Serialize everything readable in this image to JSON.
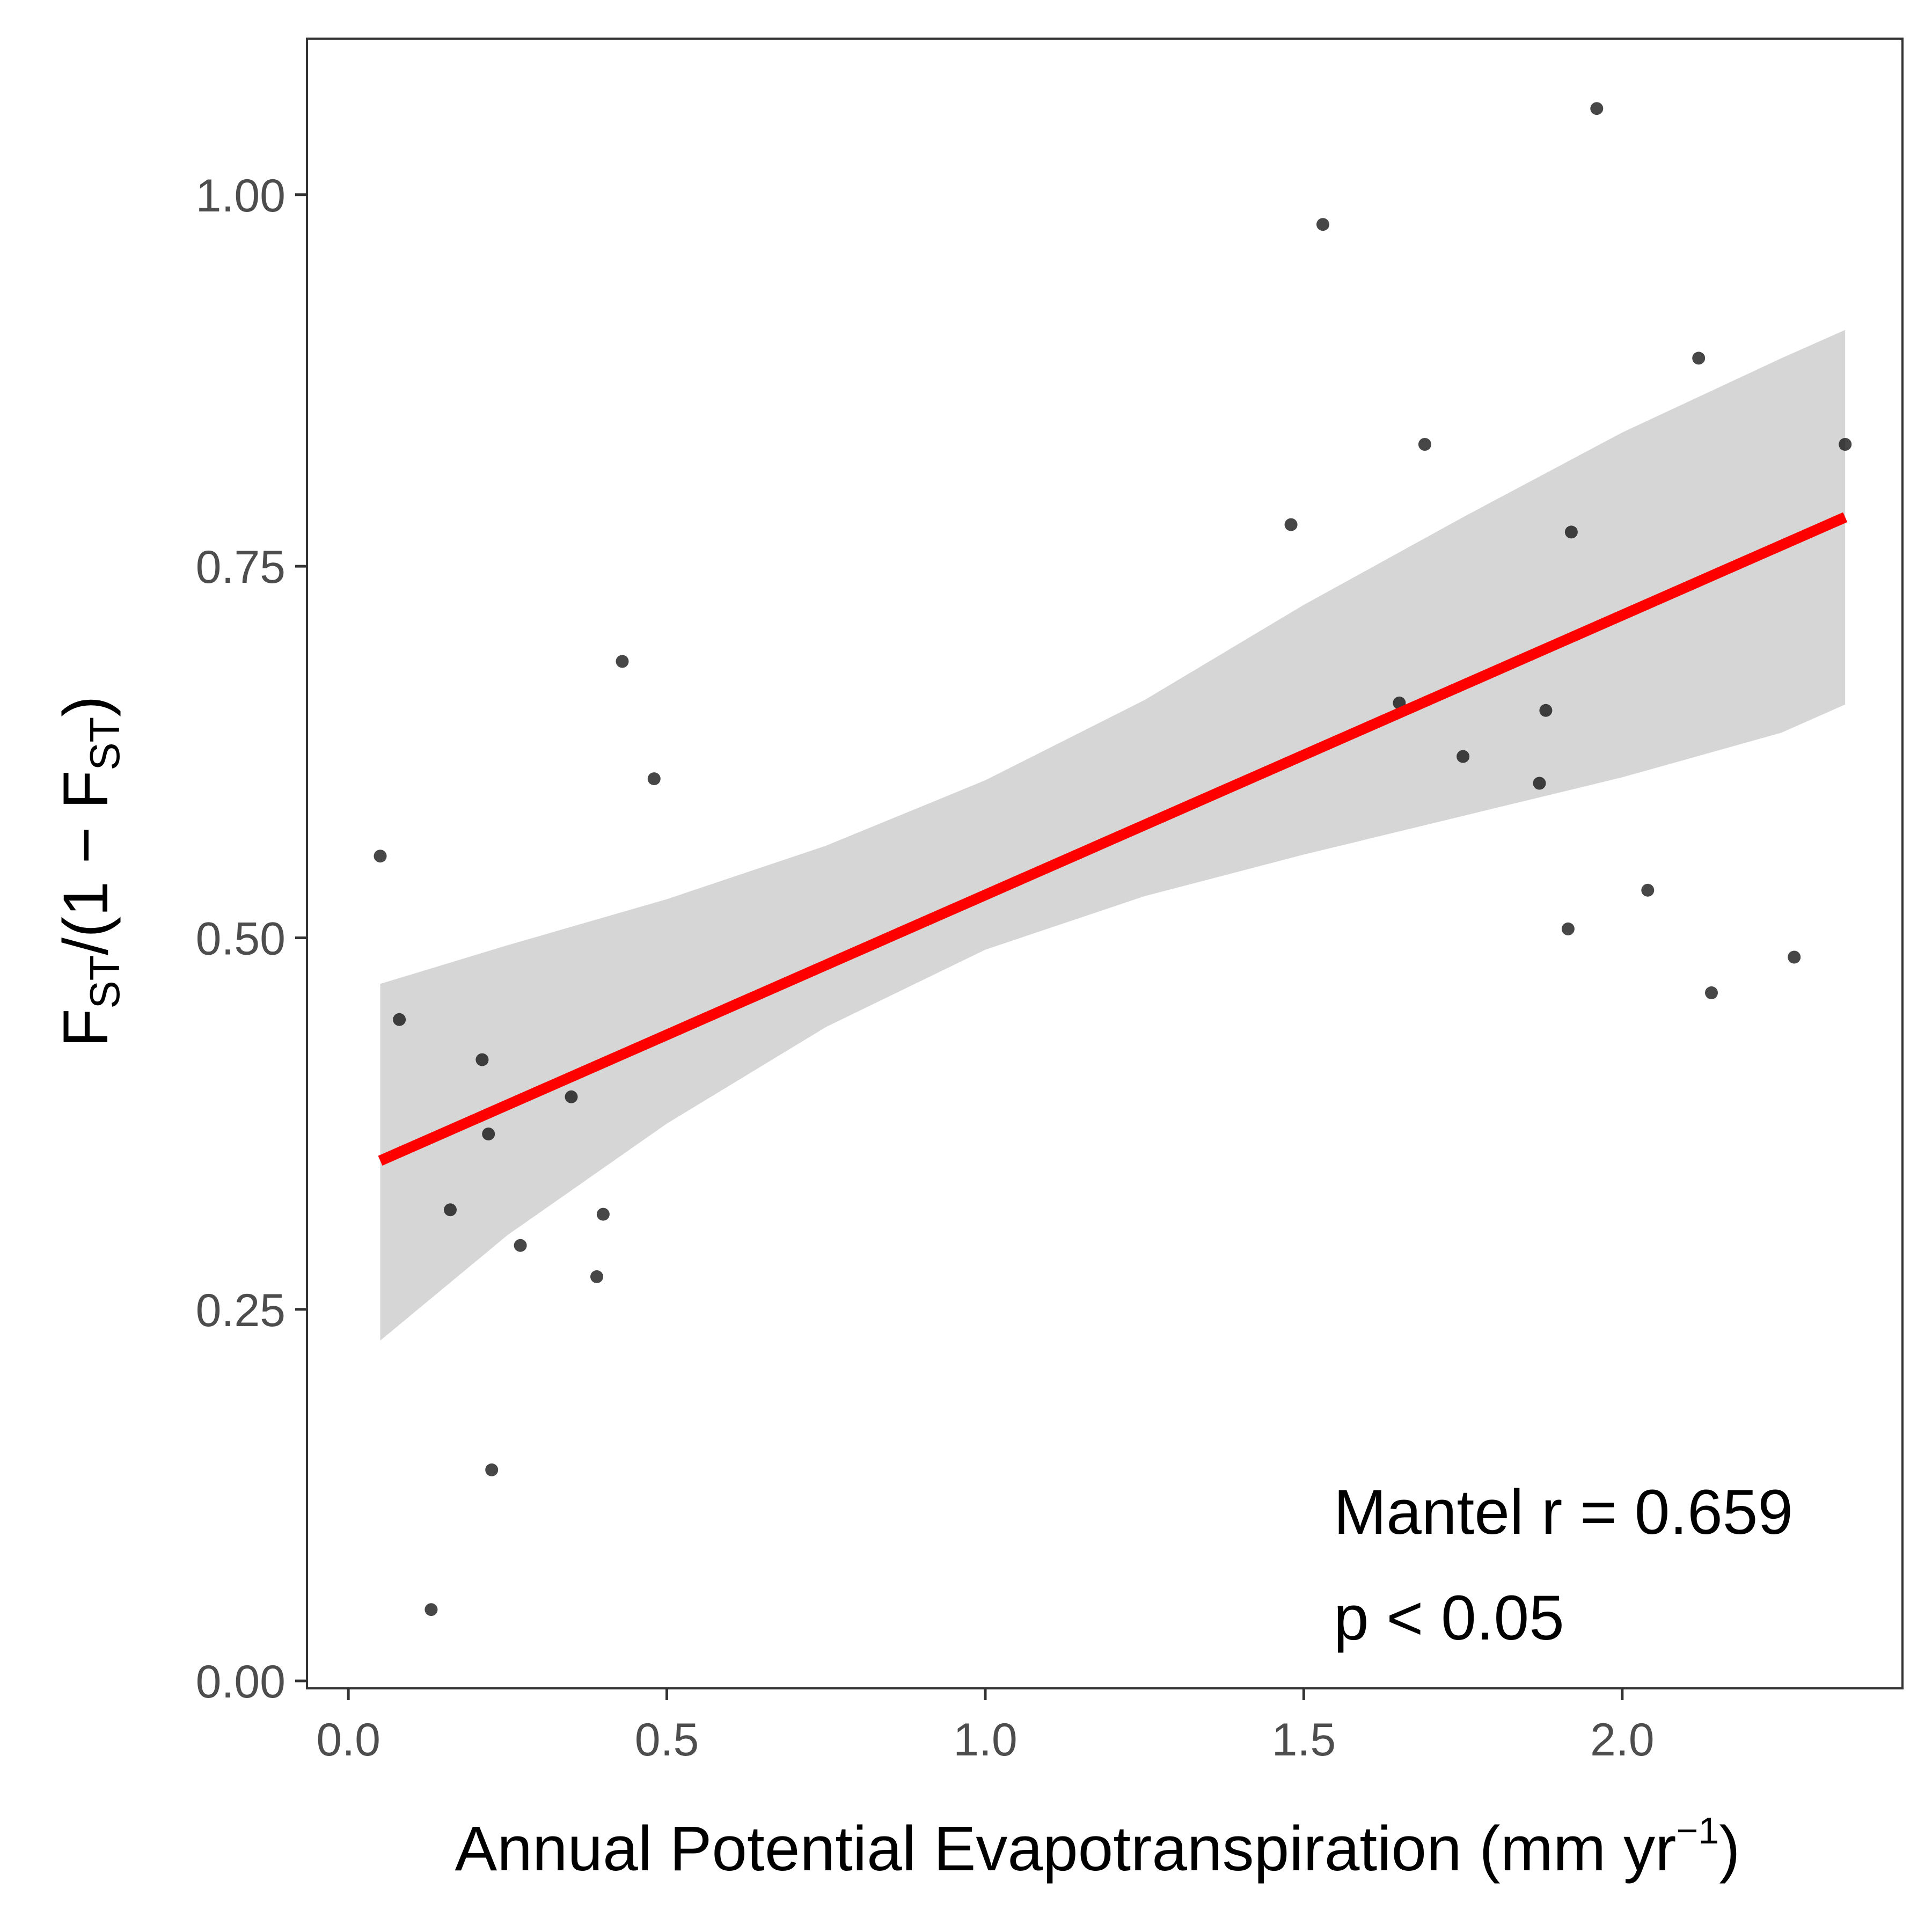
{
  "chart_data": {
    "type": "scatter",
    "xlabel": {
      "main": "Annual Potential Evapotranspiration (mm yr",
      "sup": "−1",
      "close": ")"
    },
    "ylabel": {
      "f1": "F",
      "s1": "ST",
      "mid": "/(1 − F",
      "s2": "ST",
      "end": ")"
    },
    "xlim": [
      -0.065,
      2.44
    ],
    "ylim": [
      -0.005,
      1.105
    ],
    "x_ticks": [
      0.0,
      0.5,
      1.0,
      1.5,
      2.0
    ],
    "x_tick_labels": [
      "0.0",
      "0.5",
      "1.0",
      "1.5",
      "2.0"
    ],
    "y_ticks": [
      0.0,
      0.25,
      0.5,
      0.75,
      1.0
    ],
    "y_tick_labels": [
      "0.00",
      "0.25",
      "0.50",
      "0.75",
      "1.00"
    ],
    "grid": false,
    "points": [
      {
        "x": 0.05,
        "y": 0.555
      },
      {
        "x": 0.08,
        "y": 0.445
      },
      {
        "x": 0.13,
        "y": 0.048
      },
      {
        "x": 0.16,
        "y": 0.317
      },
      {
        "x": 0.21,
        "y": 0.418
      },
      {
        "x": 0.22,
        "y": 0.368
      },
      {
        "x": 0.225,
        "y": 0.142
      },
      {
        "x": 0.27,
        "y": 0.293
      },
      {
        "x": 0.35,
        "y": 0.393
      },
      {
        "x": 0.39,
        "y": 0.272
      },
      {
        "x": 0.4,
        "y": 0.314
      },
      {
        "x": 0.43,
        "y": 0.686
      },
      {
        "x": 0.48,
        "y": 0.607
      },
      {
        "x": 1.48,
        "y": 0.778
      },
      {
        "x": 1.53,
        "y": 0.98
      },
      {
        "x": 1.65,
        "y": 0.658
      },
      {
        "x": 1.69,
        "y": 0.832
      },
      {
        "x": 1.75,
        "y": 0.622
      },
      {
        "x": 1.87,
        "y": 0.604
      },
      {
        "x": 1.88,
        "y": 0.653
      },
      {
        "x": 1.915,
        "y": 0.506
      },
      {
        "x": 1.92,
        "y": 0.773
      },
      {
        "x": 1.96,
        "y": 1.058
      },
      {
        "x": 2.04,
        "y": 0.532
      },
      {
        "x": 2.12,
        "y": 0.89
      },
      {
        "x": 2.14,
        "y": 0.463
      },
      {
        "x": 2.27,
        "y": 0.487
      },
      {
        "x": 2.35,
        "y": 0.832
      }
    ],
    "fit_line": {
      "x": [
        0.05,
        2.35
      ],
      "y": [
        0.35,
        0.783
      ],
      "color": "#ff0000"
    },
    "confidence_band": {
      "color": "#d6d6d6",
      "x": [
        0.05,
        0.25,
        0.5,
        0.75,
        1.0,
        1.25,
        1.5,
        1.75,
        2.0,
        2.25,
        2.35
      ],
      "lower": [
        0.229,
        0.3,
        0.375,
        0.44,
        0.492,
        0.528,
        0.556,
        0.582,
        0.608,
        0.638,
        0.657
      ],
      "upper": [
        0.469,
        0.495,
        0.526,
        0.562,
        0.606,
        0.66,
        0.724,
        0.783,
        0.84,
        0.89,
        0.909
      ]
    },
    "point_color": "#000000",
    "annotations": [
      "Mantel r = 0.659",
      "p < 0.05"
    ]
  }
}
